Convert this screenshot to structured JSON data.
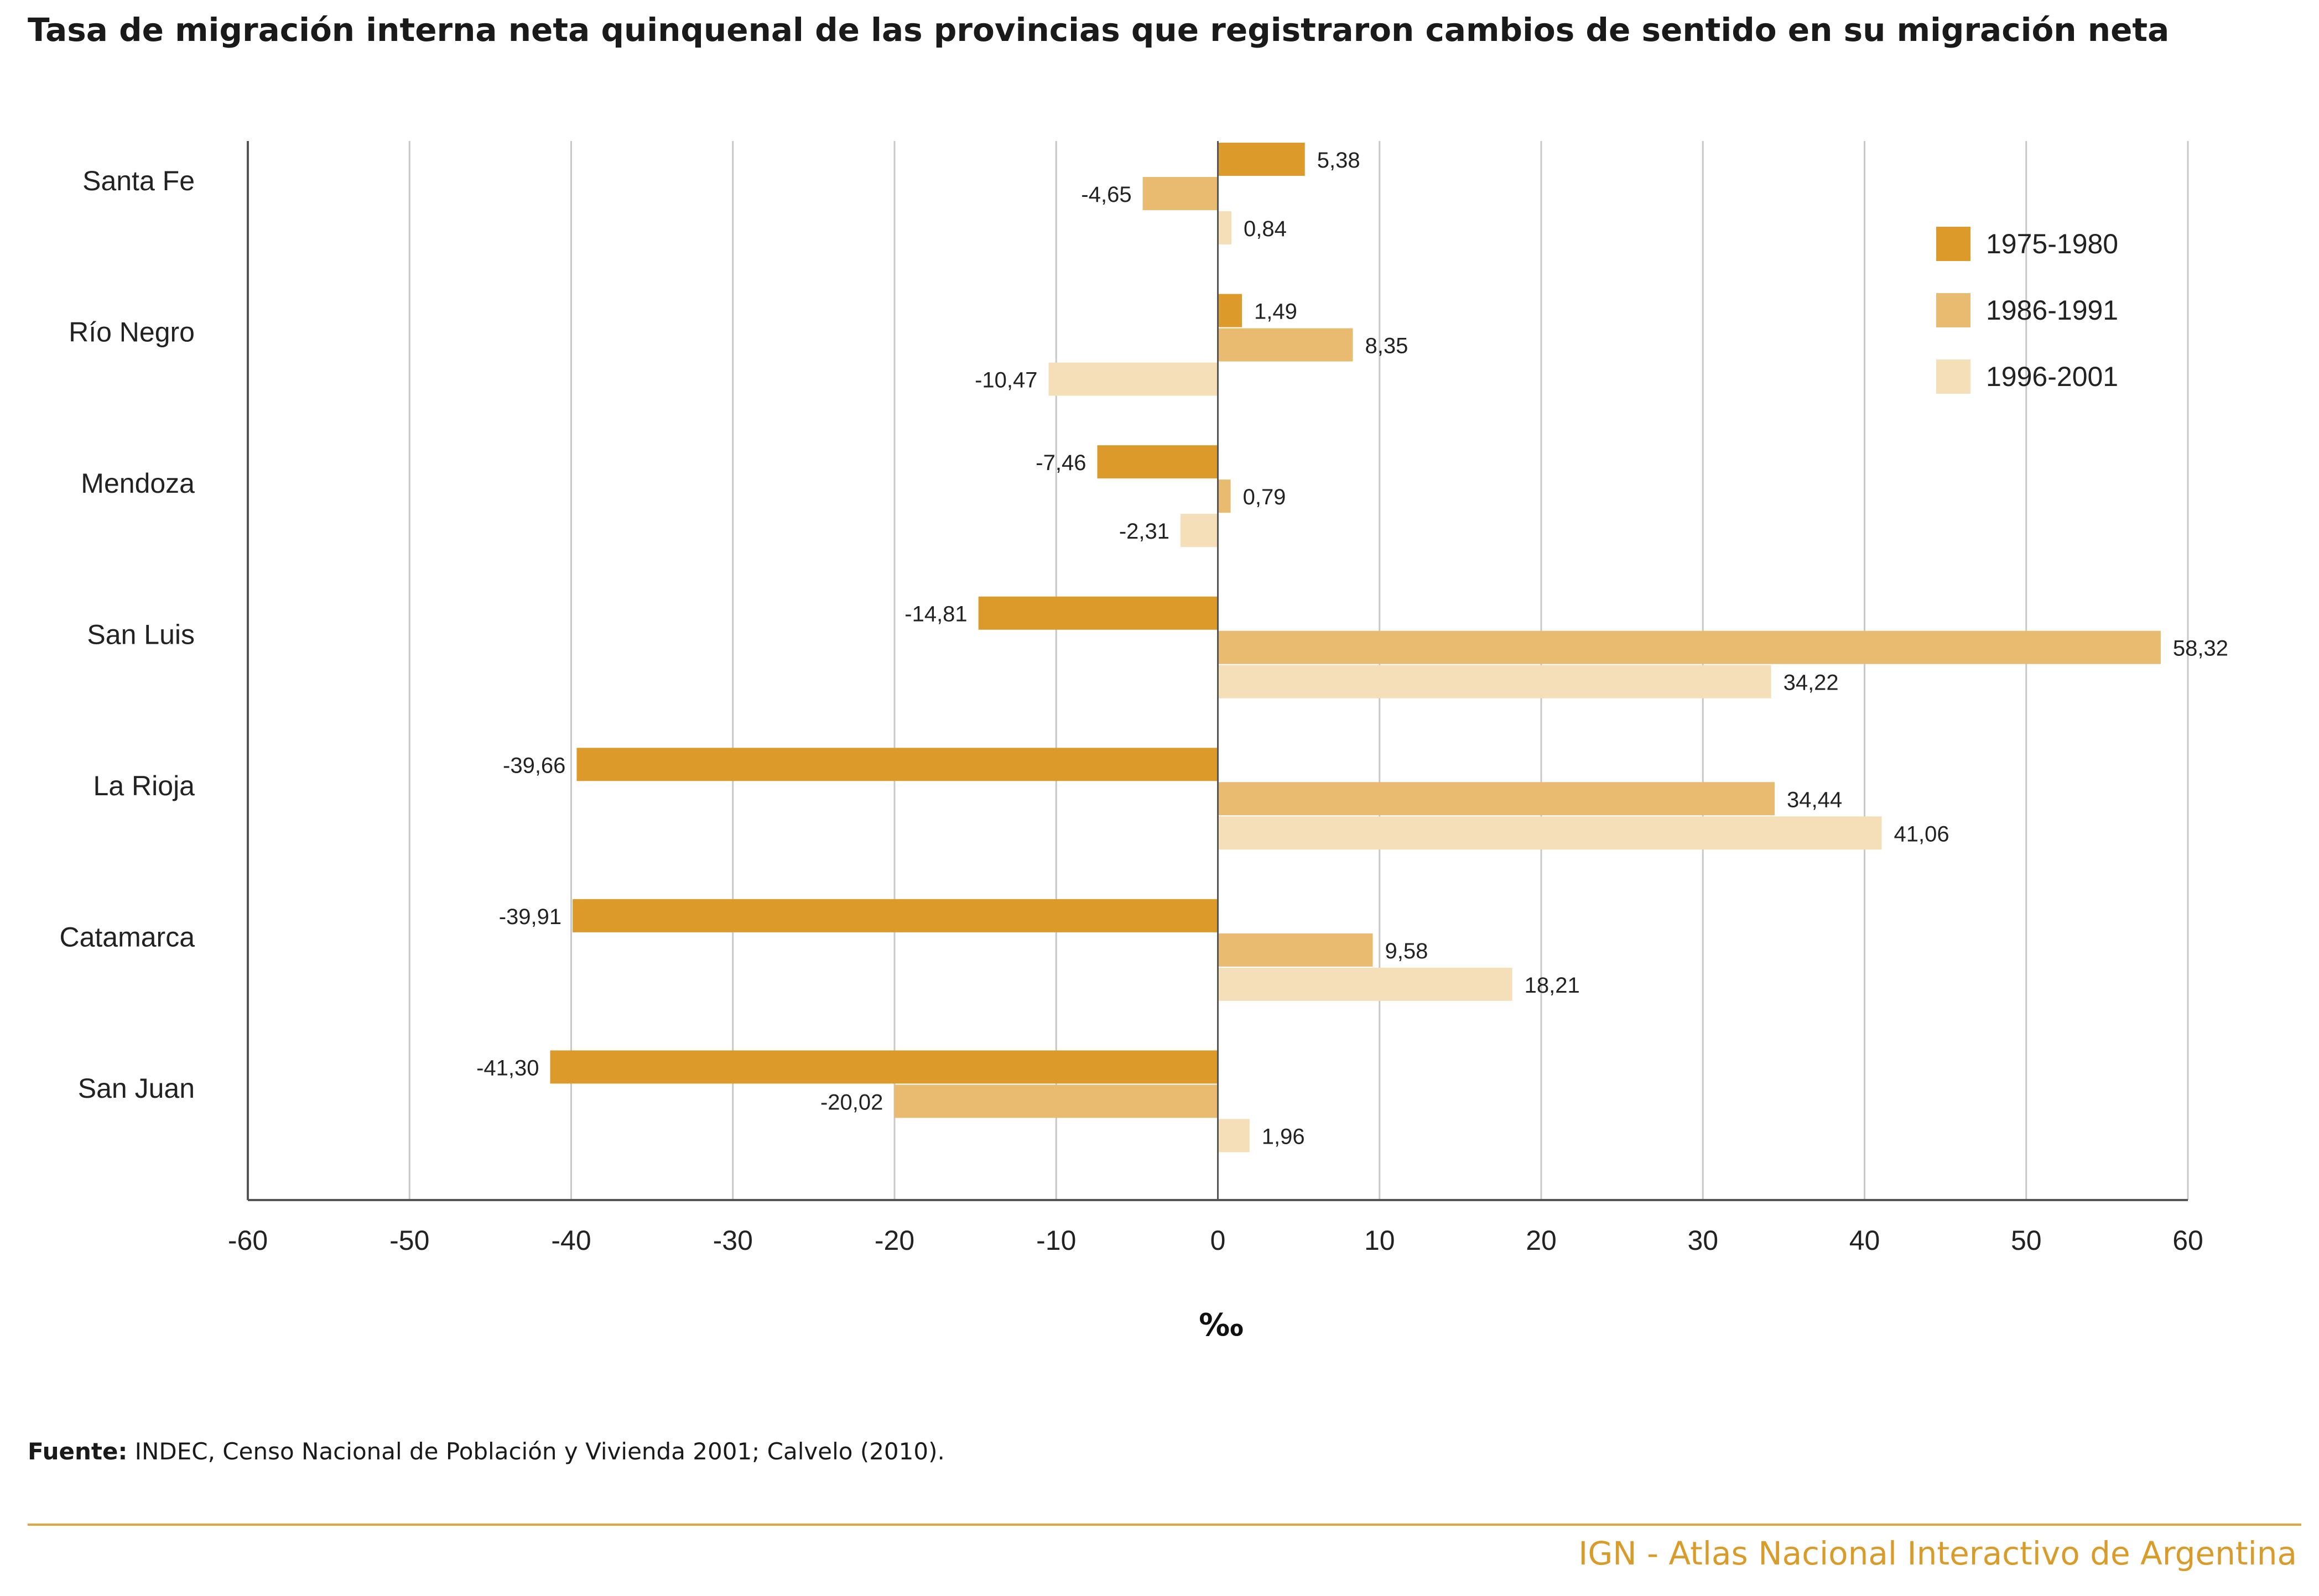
{
  "title": "Tasa de migración interna neta quinquenal de las provincias que registraron cambios de sentido en su migración neta",
  "source_label": "Fuente:",
  "source_text": " INDEC, Censo Nacional de Población y Vivienda 2001; Calvelo (2010).",
  "footer": "IGN - Atlas Nacional Interactivo de Argentina",
  "colors": {
    "s1": "#db9a2a",
    "s2": "#e8bb70",
    "s3": "#f4dfb8",
    "grid": "#c8c8c8",
    "axis": "#555555",
    "accent": "#d99b2a"
  },
  "chart_data": {
    "type": "bar",
    "orientation": "horizontal",
    "categories": [
      "Santa Fe",
      "Río Negro",
      "Mendoza",
      "San Luis",
      "La Rioja",
      "Catamarca",
      "San Juan"
    ],
    "series": [
      {
        "name": "1975-1980",
        "values": [
          5.38,
          1.49,
          -7.46,
          -14.81,
          -39.66,
          -39.91,
          -41.3
        ],
        "labels": [
          "5,38",
          "1,49",
          "-7,46",
          "-14,81",
          "-39,66",
          "-39,91",
          "-41,30"
        ]
      },
      {
        "name": "1986-1991",
        "values": [
          -4.65,
          8.35,
          0.79,
          58.32,
          34.44,
          9.58,
          -20.02
        ],
        "labels": [
          "-4,65",
          "8,35",
          "0,79",
          "58,32",
          "34,44",
          "9,58",
          "-20,02"
        ]
      },
      {
        "name": "1996-2001",
        "values": [
          0.84,
          -10.47,
          -2.31,
          34.22,
          41.06,
          18.21,
          1.96
        ],
        "labels": [
          "0,84",
          "-10,47",
          "-2,31",
          "34,22",
          "41,06",
          "18,21",
          "1,96"
        ]
      }
    ],
    "xticks": [
      -60,
      -50,
      -40,
      -30,
      -20,
      -10,
      0,
      10,
      20,
      30,
      40,
      50,
      60
    ],
    "xlim": [
      -60,
      60
    ],
    "xlabel": "‰",
    "grid": true,
    "legend_position": "top-right"
  }
}
